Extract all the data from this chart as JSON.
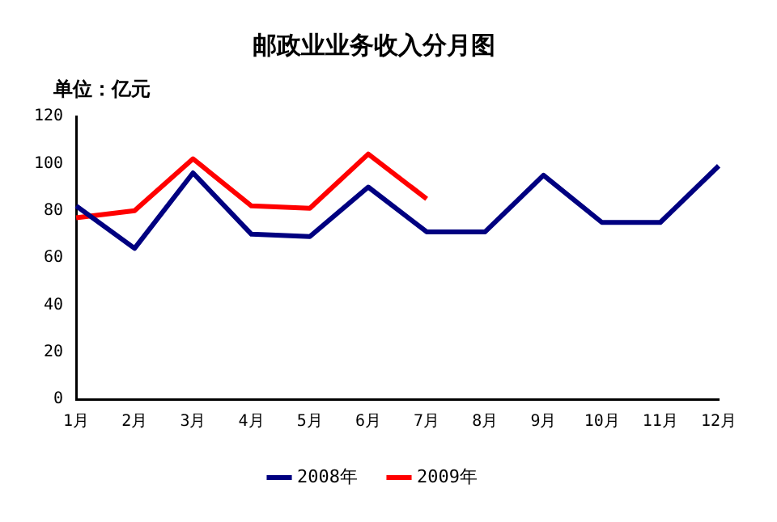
{
  "chart_data": {
    "type": "line",
    "title": "邮政业业务收入分月图",
    "ylabel": "单位：亿元",
    "categories": [
      "1月",
      "2月",
      "3月",
      "4月",
      "5月",
      "6月",
      "7月",
      "8月",
      "9月",
      "10月",
      "11月",
      "12月"
    ],
    "series": [
      {
        "name": "2008年",
        "color": "#000080",
        "values": [
          82,
          64,
          96,
          70,
          69,
          90,
          71,
          71,
          95,
          75,
          75,
          99
        ]
      },
      {
        "name": "2009年",
        "color": "#ff0000",
        "values": [
          77,
          80,
          102,
          82,
          81,
          104,
          85,
          null,
          null,
          null,
          null,
          null
        ]
      }
    ],
    "ylim": [
      0,
      120
    ],
    "yticks": [
      0,
      20,
      40,
      60,
      80,
      100,
      120
    ],
    "grid": false,
    "legend": "bottom",
    "marker": "none",
    "line_style": "solid"
  }
}
